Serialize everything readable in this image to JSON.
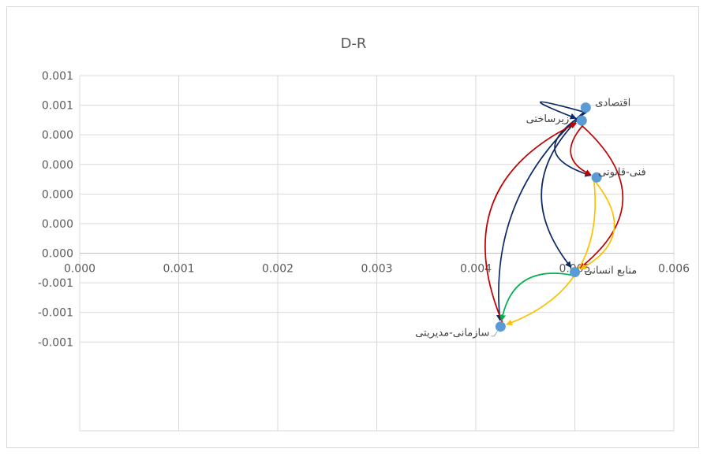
{
  "chart_data": {
    "type": "scatter",
    "title": "D-R",
    "xlabel": "",
    "ylabel": "",
    "xlim": [
      0,
      0.006
    ],
    "ylim": [
      -0.0015,
      0.0015
    ],
    "grid": true,
    "x_ticks": [
      "0.000",
      "0.001",
      "0.002",
      "0.003",
      "0.004",
      "0.005",
      "0.006"
    ],
    "y_ticks": [
      "0.001",
      "0.001",
      "0.000",
      "0.000",
      "0.000",
      "0.000",
      "0.000",
      "-0.001",
      "-0.001",
      "-0.001"
    ],
    "y_tick_values": [
      0.0015,
      0.00125,
      0.001,
      0.00075,
      0.0005,
      0.00025,
      0.0,
      -0.00025,
      -0.0005,
      -0.00075
    ],
    "point_color": "#5b9bd5",
    "points": [
      {
        "label": "اقتصادی",
        "x": 0.00511,
        "y": 0.00123
      },
      {
        "label": "زیرساختی",
        "x": 0.00507,
        "y": 0.00112
      },
      {
        "label": "فنی-قانونی",
        "x": 0.00522,
        "y": 0.00064
      },
      {
        "label": "منابع انسانی",
        "x": 0.005,
        "y": -0.00016
      },
      {
        "label": "سازمانی-مدیریتی",
        "x": 0.00425,
        "y": -0.00062
      }
    ],
    "arrows": [
      {
        "from": "اقتصادی",
        "to": "زیرساختی",
        "color": "#0c2a66"
      },
      {
        "from": "اقتصادی",
        "to": "فنی-قانونی",
        "color": "#0c2a66"
      },
      {
        "from": "اقتصادی",
        "to": "منابع انسانی",
        "color": "#0c2a66"
      },
      {
        "from": "اقتصادی",
        "to": "سازمانی-مدیریتی",
        "color": "#0c2a66"
      },
      {
        "from": "زیرساختی",
        "to": "فنی-قانونی",
        "color": "#c00000"
      },
      {
        "from": "زیرساختی",
        "to": "منابع انسانی",
        "color": "#c00000"
      },
      {
        "from": "سازمانی-مدیریتی",
        "to": "زیرساختی",
        "color": "#c00000"
      },
      {
        "from": "فنی-قانونی",
        "to": "منابع انسانی",
        "color": "#ffc000"
      },
      {
        "from": "فنی-قانونی",
        "to": "سازمانی-مدیریتی",
        "color": "#ffc000"
      },
      {
        "from": "منابع انسانی",
        "to": "سازمانی-مدیریتی",
        "color": "#00b050"
      }
    ]
  }
}
